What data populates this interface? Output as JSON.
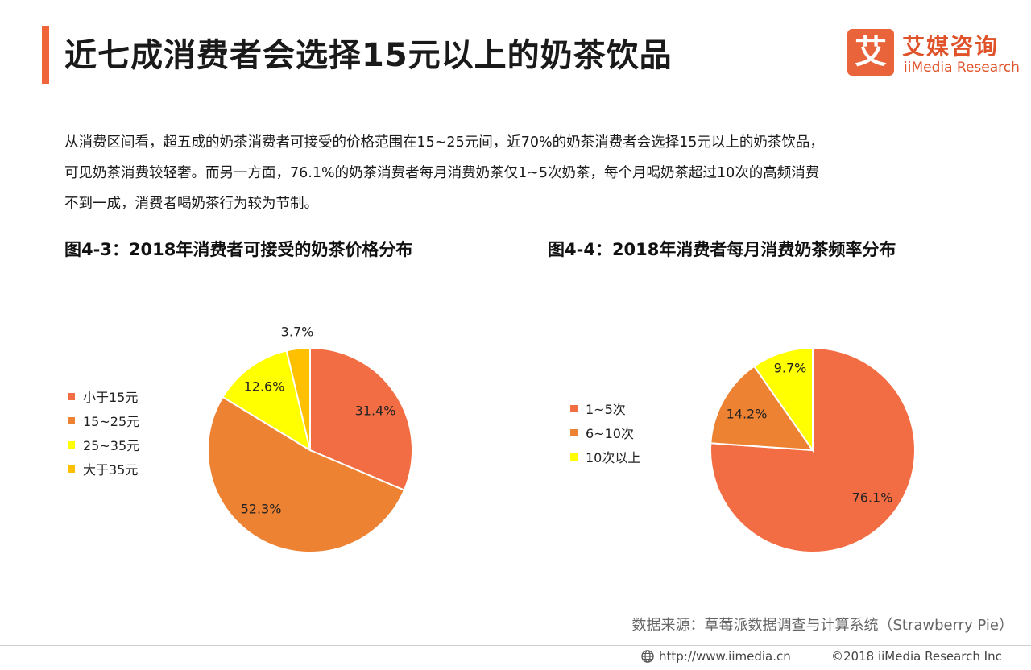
{
  "header": {
    "title": "近七成消费者会选择15元以上的奶茶饮品",
    "logo": {
      "mark": "艾",
      "cn": "艾媒咨询",
      "en": "iiMedia Research"
    }
  },
  "intro": {
    "lines": [
      "从消费区间看，超五成的奶茶消费者可接受的价格范围在15~25元间，近70%的奶茶消费者会选择15元以上的奶茶饮品，",
      "可见奶茶消费较轻奢。而另一方面，76.1%的奶茶消费者每月消费奶茶仅1~5次奶茶，每个月喝奶茶超过10次的高频消费",
      "不到一成，消费者喝奶茶行为较为节制。"
    ]
  },
  "chart_data": [
    {
      "type": "pie",
      "title": "图4-3：2018年消费者可接受的奶茶价格分布",
      "categories": [
        "小于15元",
        "15~25元",
        "25~35元",
        "大于35元"
      ],
      "values": [
        31.4,
        52.3,
        12.6,
        3.7
      ],
      "labels": [
        "31.4%",
        "52.3%",
        "12.6%",
        "3.7%"
      ],
      "colors": [
        "#f26d43",
        "#ed8233",
        "#ffff00",
        "#ffc000"
      ],
      "legend": "left"
    },
    {
      "type": "pie",
      "title": "图4-4：2018年消费者每月消费奶茶频率分布",
      "categories": [
        "1~5次",
        "6~10次",
        "10次以上"
      ],
      "values": [
        76.1,
        14.2,
        9.7
      ],
      "labels": [
        "76.1%",
        "14.2%",
        "9.7%"
      ],
      "colors": [
        "#f26d43",
        "#ed8233",
        "#ffff00"
      ],
      "legend": "left"
    }
  ],
  "source": "数据来源：草莓派数据调查与计算系统（Strawberry  Pie）",
  "footer": {
    "url": "http://www.iimedia.cn",
    "copyright": "©2018  iiMedia Research  Inc"
  },
  "icons": {
    "globe": "globe-icon"
  }
}
